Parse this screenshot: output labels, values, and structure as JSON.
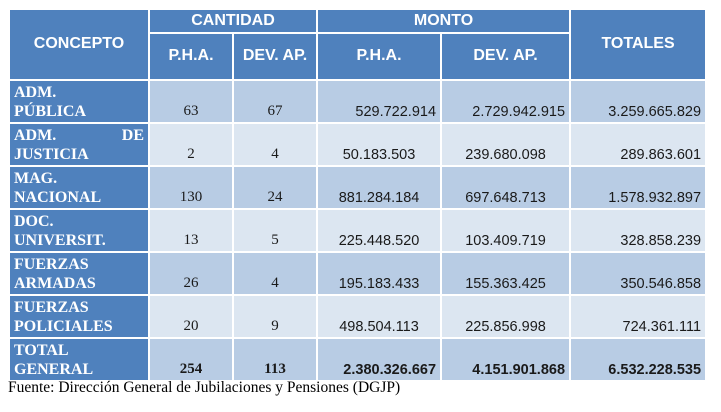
{
  "header": {
    "concepto": "CONCEPTO",
    "cantidad": "CANTIDAD",
    "monto": "MONTO",
    "totales": "TOTALES",
    "sub": {
      "cant_pha": "P.H.A.",
      "cant_dev": "DEV. AP.",
      "monto_pha": "P.H.A.",
      "monto_dev": "DEV. AP."
    }
  },
  "rows": [
    {
      "line1": "ADM.",
      "line2": "PÚBLICA",
      "cant_pha": "63",
      "cant_dev": "67",
      "monto_pha": "529.722.914",
      "monto_dev": "2.729.942.915",
      "total": "3.259.665.829"
    },
    {
      "line1a": "ADM.",
      "line1b": "DE",
      "line2": "JUSTICIA",
      "cant_pha": "2",
      "cant_dev": "4",
      "monto_pha": "50.183.503",
      "monto_dev": "239.680.098",
      "total": "289.863.601"
    },
    {
      "line1": "MAG.",
      "line2": "NACIONAL",
      "cant_pha": "130",
      "cant_dev": "24",
      "monto_pha": "881.284.184",
      "monto_dev": "697.648.713",
      "total": "1.578.932.897"
    },
    {
      "line1": "DOC.",
      "line2": "UNIVERSIT.",
      "cant_pha": "13",
      "cant_dev": "5",
      "monto_pha": "225.448.520",
      "monto_dev": "103.409.719",
      "total": "328.858.239"
    },
    {
      "line1": "FUERZAS",
      "line2": "ARMADAS",
      "cant_pha": "26",
      "cant_dev": "4",
      "monto_pha": "195.183.433",
      "monto_dev": "155.363.425",
      "total": "350.546.858"
    },
    {
      "line1": "FUERZAS",
      "line2": "POLICIALES",
      "cant_pha": "20",
      "cant_dev": "9",
      "monto_pha": "498.504.113",
      "monto_dev": "225.856.998",
      "total": "724.361.111"
    }
  ],
  "total_row": {
    "line1": "TOTAL",
    "line2": "GENERAL",
    "cant_pha": "254",
    "cant_dev": "113",
    "monto_pha": "2.380.326.667",
    "monto_dev": "4.151.901.868",
    "total": "6.532.228.535"
  },
  "source": "Fuente: Dirección General de Jubilaciones y Pensiones (DGJP)",
  "colors": {
    "header_blue": "#4f81bd",
    "band_dark": "#b8cce4",
    "band_light": "#dce6f1"
  }
}
